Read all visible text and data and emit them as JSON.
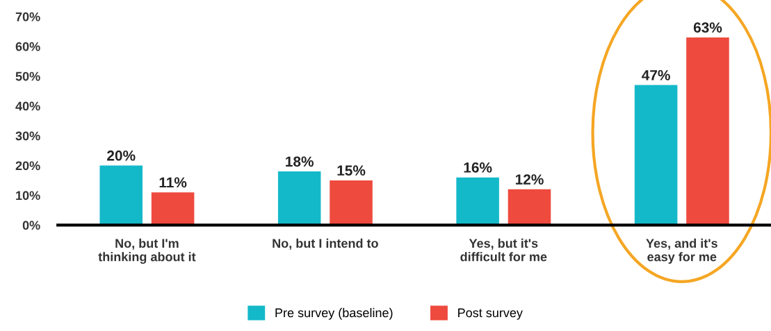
{
  "chart_data": {
    "type": "bar",
    "categories": [
      "No, but I'm\nthinking about it",
      "No, but I intend to",
      "Yes, but it's\ndifficult for me",
      "Yes, and it's\neasy for me"
    ],
    "series": [
      {
        "name": "Pre survey (baseline)",
        "color": "#14b9c9",
        "values": [
          20,
          18,
          16,
          47
        ],
        "value_labels": [
          "20%",
          "18%",
          "16%",
          "47%"
        ]
      },
      {
        "name": "Post survey",
        "color": "#ee4a3e",
        "values": [
          11,
          15,
          12,
          63
        ],
        "value_labels": [
          "11%",
          "15%",
          "12%",
          "63%"
        ]
      }
    ],
    "ylim": [
      0,
      70
    ],
    "yticks": [
      {
        "value": 0,
        "label": "0%"
      },
      {
        "value": 10,
        "label": "10%"
      },
      {
        "value": 20,
        "label": "20%"
      },
      {
        "value": 30,
        "label": "30%"
      },
      {
        "value": 40,
        "label": "40%"
      },
      {
        "value": 50,
        "label": "50%"
      },
      {
        "value": 60,
        "label": "60%"
      },
      {
        "value": 70,
        "label": "70%"
      }
    ],
    "grid": false,
    "legend": "bottom"
  }
}
